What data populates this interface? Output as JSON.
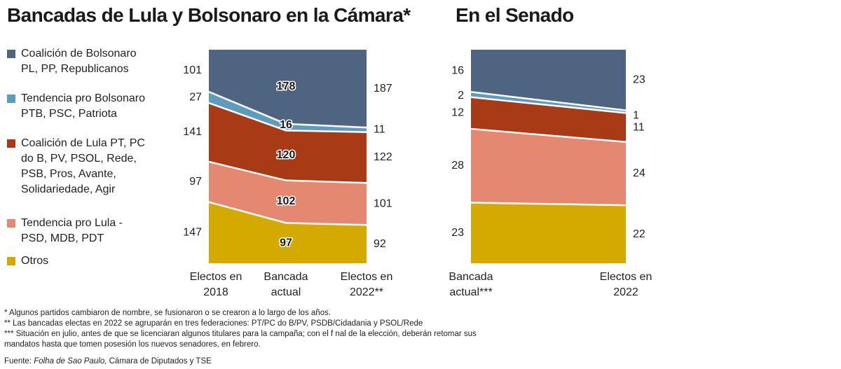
{
  "titles": {
    "camara": "Bancadas de Lula y Bolsonaro en la Cámara*",
    "senado": "En el Senado"
  },
  "legend": [
    {
      "lines": [
        "Coalición de Bolsonaro",
        "PL, PP, Republicanos"
      ],
      "color": "#4e6480"
    },
    {
      "lines": [
        "Tendencia pro Bolsonaro",
        "PTB, PSC, Patriota"
      ],
      "color": "#5e9cbf"
    },
    {
      "lines": [
        "Coalición de Lula PT, PC",
        "do B, PV, PSOL, Rede,",
        "PSB, Pros, Avante,",
        "Solidariedade, Agir"
      ],
      "color": "#a83a16"
    },
    {
      "lines": [
        "Tendencia pro Lula -",
        "PSD, MDB, PDT"
      ],
      "color": "#e48872"
    },
    {
      "lines": [
        "Otros"
      ],
      "color": "#d4aa00"
    }
  ],
  "chart_data": [
    {
      "type": "area",
      "title": "Bancadas de Lula y Bolsonaro en la Cámara*",
      "x": [
        "Electos en 2018",
        "Bancada actual",
        "Electos en 2022**"
      ],
      "x_label_lines": [
        [
          "Electos en",
          "2018"
        ],
        [
          "Bancada",
          "actual"
        ],
        [
          "Electos en",
          "2022**"
        ]
      ],
      "stacked": true,
      "series": [
        {
          "name": "Otros",
          "values": [
            147,
            97,
            92
          ],
          "color": "#d4aa00"
        },
        {
          "name": "Tendencia pro Lula - PSD, MDB, PDT",
          "values": [
            97,
            102,
            101
          ],
          "color": "#e48872"
        },
        {
          "name": "Coalición de Lula",
          "values": [
            141,
            120,
            122
          ],
          "color": "#a83a16"
        },
        {
          "name": "Tendencia pro Bolsonaro PTB, PSC, Patriota",
          "values": [
            27,
            16,
            11
          ],
          "color": "#5e9cbf"
        },
        {
          "name": "Coalición de Bolsonaro PL, PP, Republicanos",
          "values": [
            101,
            178,
            187
          ],
          "color": "#4e6480"
        }
      ],
      "labels_left": [
        "147",
        "97",
        "141",
        "27",
        "101"
      ],
      "labels_middle": [
        "97",
        "102",
        "120",
        "16",
        "178"
      ],
      "labels_right": [
        "92",
        "101",
        "122",
        "11",
        "187"
      ]
    },
    {
      "type": "area",
      "title": "En el Senado",
      "x": [
        "Bancada actual***",
        "Electos en 2022"
      ],
      "x_label_lines": [
        [
          "Bancada",
          "actual***"
        ],
        [
          "Electos en",
          "2022"
        ]
      ],
      "stacked": true,
      "series": [
        {
          "name": "Otros",
          "values": [
            23,
            22
          ],
          "color": "#d4aa00"
        },
        {
          "name": "Tendencia pro Lula - PSD, MDB, PDT",
          "values": [
            28,
            24
          ],
          "color": "#e48872"
        },
        {
          "name": "Coalición de Lula",
          "values": [
            12,
            11
          ],
          "color": "#a83a16"
        },
        {
          "name": "Tendencia pro Bolsonaro PTB, PSC, Patriota",
          "values": [
            2,
            1
          ],
          "color": "#5e9cbf"
        },
        {
          "name": "Coalición de Bolsonaro PL, PP, Republicanos",
          "values": [
            16,
            23
          ],
          "color": "#4e6480"
        }
      ],
      "labels_left": [
        "23",
        "28",
        "12",
        "2",
        "16"
      ],
      "labels_right": [
        "22",
        "24",
        "11",
        "1",
        "23"
      ]
    }
  ],
  "footnotes": [
    "* Algunos partidos cambiaron de nombre, se fusionaron o se crearon a lo largo de los años.",
    "** Las bancadas electas en 2022 se agruparán en tres federaciones: PT/PC do B/PV, PSDB/Cidadania y PSOL/Rede",
    "*** Situación en julio, antes de que se licenciaran algunos titulares para la campaña; con el f nal de la elección, deberán retomar sus mandatos hasta que tomen posesión los nuevos senadores, en febrero."
  ],
  "source": {
    "prefix": "Fuente: ",
    "italic": "Folha de Sao Paulo,",
    "rest": " Cámara de Diputados y TSE"
  }
}
